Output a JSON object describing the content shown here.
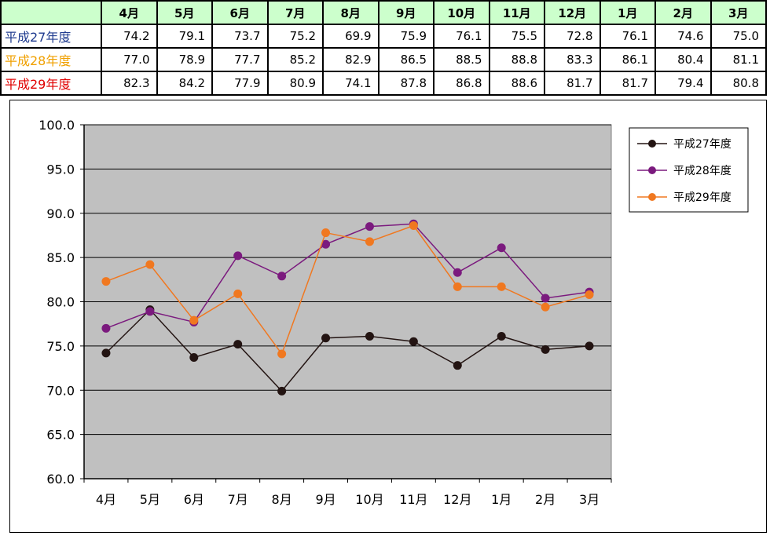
{
  "table": {
    "headers": [
      "4月",
      "5月",
      "6月",
      "7月",
      "8月",
      "9月",
      "10月",
      "11月",
      "12月",
      "1月",
      "2月",
      "3月"
    ],
    "rows": [
      {
        "label": "平成27年度",
        "color": "#1f3b8f",
        "values": [
          "74.2",
          "79.1",
          "73.7",
          "75.2",
          "69.9",
          "75.9",
          "76.1",
          "75.5",
          "72.8",
          "76.1",
          "74.6",
          "75.0"
        ]
      },
      {
        "label": "平成28年度",
        "color": "#f0a000",
        "values": [
          "77.0",
          "78.9",
          "77.7",
          "85.2",
          "82.9",
          "86.5",
          "88.5",
          "88.8",
          "83.3",
          "86.1",
          "80.4",
          "81.1"
        ]
      },
      {
        "label": "平成29年度",
        "color": "#e00000",
        "values": [
          "82.3",
          "84.2",
          "77.9",
          "80.9",
          "74.1",
          "87.8",
          "86.8",
          "88.6",
          "81.7",
          "81.7",
          "79.4",
          "80.8"
        ]
      }
    ]
  },
  "chart_data": {
    "type": "line",
    "categories": [
      "4月",
      "5月",
      "6月",
      "7月",
      "8月",
      "9月",
      "10月",
      "11月",
      "12月",
      "1月",
      "2月",
      "3月"
    ],
    "ylim": [
      60.0,
      100.0
    ],
    "yticks": [
      "100.0",
      "95.0",
      "90.0",
      "85.0",
      "80.0",
      "75.0",
      "70.0",
      "65.0",
      "60.0"
    ],
    "grid": true,
    "plot_background": "#c0c0c0",
    "legend_position": "right-top",
    "series": [
      {
        "name": "平成27年度",
        "color": "#231412",
        "values": [
          74.2,
          79.1,
          73.7,
          75.2,
          69.9,
          75.9,
          76.1,
          75.5,
          72.8,
          76.1,
          74.6,
          75.0
        ]
      },
      {
        "name": "平成28年度",
        "color": "#7b1a7e",
        "values": [
          77.0,
          78.9,
          77.7,
          85.2,
          82.9,
          86.5,
          88.5,
          88.8,
          83.3,
          86.1,
          80.4,
          81.1
        ]
      },
      {
        "name": "平成29年度",
        "color": "#f07820",
        "values": [
          82.3,
          84.2,
          77.9,
          80.9,
          74.1,
          87.8,
          86.8,
          88.6,
          81.7,
          81.7,
          79.4,
          80.8
        ]
      }
    ]
  }
}
